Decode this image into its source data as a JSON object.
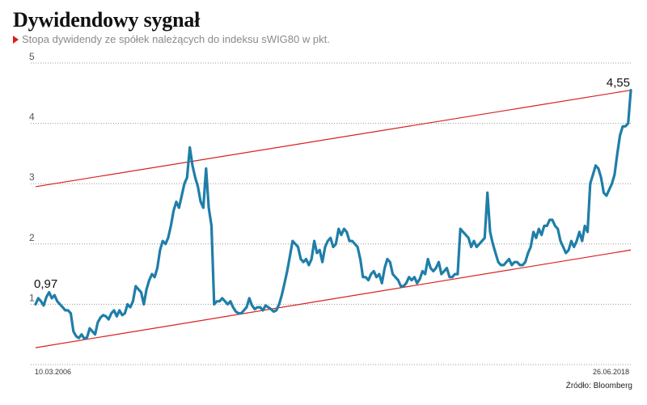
{
  "title": "Dywidendowy sygnał",
  "subtitle": "Stopa dywidendy ze spółek należących do indeksu sWIG80 w pkt.",
  "source": "Źródło: Bloomberg",
  "colors": {
    "series": "#1f7ea8",
    "trend": "#d91f1f",
    "marker": "#d91f1f",
    "grid": "#999999"
  },
  "chart_data": {
    "type": "line",
    "title": "Dywidendowy sygnał",
    "subtitle": "Stopa dywidendy ze spółek należących do indeksu sWIG80 w pkt.",
    "ylim": [
      0,
      5
    ],
    "yticks": [
      "5",
      "4",
      "3",
      "2",
      "1"
    ],
    "x_labels": {
      "start": "10.03.2006",
      "end": "26.06.2018"
    },
    "grid": "dotted horizontal",
    "annotations": {
      "start_value": "0,97",
      "end_value": "4,55"
    },
    "trend_lines": [
      {
        "start": 2.95,
        "end": 4.55
      },
      {
        "start": 0.28,
        "end": 1.9
      }
    ],
    "series": [
      {
        "values": [
          1.0,
          1.1,
          1.05,
          0.98,
          1.12,
          1.2,
          1.1,
          1.15,
          1.05,
          1.0,
          0.95,
          0.9,
          0.9,
          0.85,
          0.55,
          0.47,
          0.44,
          0.5,
          0.43,
          0.45,
          0.6,
          0.55,
          0.5,
          0.7,
          0.78,
          0.82,
          0.8,
          0.75,
          0.85,
          0.9,
          0.8,
          0.9,
          0.82,
          0.85,
          1.0,
          0.95,
          1.05,
          1.3,
          1.25,
          1.2,
          1.0,
          1.25,
          1.4,
          1.5,
          1.45,
          1.6,
          1.9,
          2.05,
          2.0,
          2.1,
          2.3,
          2.55,
          2.7,
          2.6,
          2.8,
          3.0,
          3.1,
          3.6,
          3.3,
          3.1,
          2.95,
          2.7,
          2.6,
          3.25,
          2.6,
          2.3,
          1.0,
          1.05,
          1.05,
          1.1,
          1.05,
          1.0,
          1.05,
          0.95,
          0.88,
          0.85,
          0.85,
          0.9,
          0.95,
          1.1,
          0.98,
          0.92,
          0.95,
          0.95,
          0.9,
          0.98,
          0.95,
          0.92,
          0.88,
          0.9,
          1.0,
          1.15,
          1.35,
          1.55,
          1.8,
          2.05,
          2.0,
          1.95,
          1.75,
          1.7,
          1.75,
          1.65,
          1.75,
          2.05,
          1.85,
          1.9,
          1.7,
          1.95,
          2.05,
          2.1,
          1.95,
          2.0,
          2.25,
          2.15,
          2.25,
          2.2,
          2.05,
          2.05,
          2.0,
          1.95,
          1.75,
          1.45,
          1.45,
          1.4,
          1.5,
          1.55,
          1.45,
          1.5,
          1.35,
          1.6,
          1.75,
          1.7,
          1.5,
          1.45,
          1.4,
          1.3,
          1.3,
          1.35,
          1.45,
          1.4,
          1.45,
          1.35,
          1.42,
          1.55,
          1.5,
          1.75,
          1.6,
          1.55,
          1.6,
          1.7,
          1.5,
          1.55,
          1.6,
          1.45,
          1.45,
          1.5,
          1.5,
          2.25,
          2.2,
          2.15,
          2.1,
          1.95,
          2.05,
          1.95,
          2.0,
          2.05,
          2.1,
          2.85,
          2.2,
          2.0,
          1.85,
          1.7,
          1.65,
          1.65,
          1.7,
          1.75,
          1.65,
          1.7,
          1.7,
          1.65,
          1.65,
          1.7,
          1.85,
          1.95,
          2.2,
          2.1,
          2.25,
          2.15,
          2.3,
          2.3,
          2.4,
          2.4,
          2.3,
          2.25,
          2.05,
          1.95,
          1.85,
          1.9,
          2.05,
          1.95,
          2.05,
          2.2,
          2.05,
          2.3,
          2.2,
          3.0,
          3.15,
          3.3,
          3.25,
          3.1,
          2.85,
          2.8,
          2.9,
          3.0,
          3.15,
          3.5,
          3.8,
          3.95,
          3.95,
          4.0,
          4.55
        ]
      }
    ]
  }
}
